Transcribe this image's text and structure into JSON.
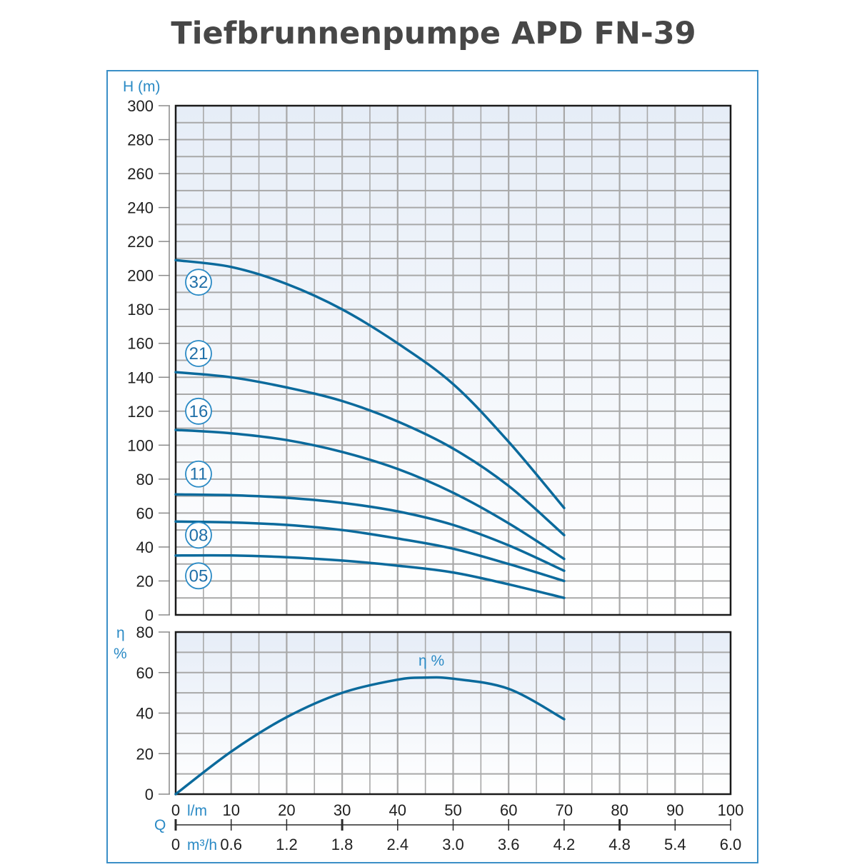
{
  "title": "Tiefbrunnenpumpe APD FN-39",
  "colors": {
    "curve": "#0b6a9c",
    "frame_border": "#3a8fc7",
    "axis_label": "#2a8ac5",
    "grid": "#a8a8a8",
    "plot_bg_top": "#e6edf7",
    "plot_bg_bottom": "#ffffff",
    "title": "#474747"
  },
  "axes": {
    "head_label": "H (m)",
    "eff_label_symbol": "η",
    "eff_label_unit": "%",
    "q_label": "Q",
    "lpm_unit": "l/m",
    "m3h_unit": "m³/h",
    "eff_curve_label": "η %"
  },
  "chart_data": [
    {
      "type": "line",
      "title": "Tiefbrunnenpumpe APD FN-39 – Förderhöhe",
      "xlabel": "Q (l/m)",
      "ylabel": "H (m)",
      "xlim": [
        0,
        100
      ],
      "ylim": [
        0,
        300
      ],
      "grid": true,
      "x_ticks": [
        0,
        10,
        20,
        30,
        40,
        50,
        60,
        70,
        80,
        90,
        100
      ],
      "x_ticks_secondary_m3h": [
        "0",
        "0.6",
        "1.2",
        "1.8",
        "2.4",
        "3.0",
        "3.6",
        "4.2",
        "4.8",
        "5.4",
        "6.0"
      ],
      "y_ticks": [
        0,
        20,
        40,
        60,
        80,
        100,
        120,
        140,
        160,
        180,
        200,
        220,
        240,
        260,
        280,
        300
      ],
      "x": [
        0,
        10,
        20,
        30,
        40,
        50,
        60,
        70
      ],
      "series": [
        {
          "name": "32",
          "values": [
            209,
            205,
            195,
            180,
            160,
            136,
            102,
            63
          ],
          "label_y": 196
        },
        {
          "name": "21",
          "values": [
            143,
            140,
            134,
            126,
            114,
            98,
            76,
            47
          ],
          "label_y": 154
        },
        {
          "name": "16",
          "values": [
            109,
            107,
            103,
            96,
            86,
            72,
            54,
            33
          ],
          "label_y": 120
        },
        {
          "name": "11",
          "values": [
            71,
            70.5,
            69,
            66,
            61,
            53,
            41,
            26
          ],
          "label_y": 83
        },
        {
          "name": "08",
          "values": [
            55,
            54.5,
            53,
            50,
            45,
            39,
            30,
            20
          ],
          "label_y": 47
        },
        {
          "name": "05",
          "values": [
            35,
            35,
            34,
            32,
            29,
            25,
            18,
            10
          ],
          "label_y": 23
        }
      ]
    },
    {
      "type": "line",
      "title": "Wirkungsgrad",
      "xlabel": "Q (l/m)",
      "ylabel": "η %",
      "xlim": [
        0,
        100
      ],
      "ylim": [
        0,
        80
      ],
      "grid": true,
      "y_ticks": [
        0,
        20,
        40,
        60,
        80
      ],
      "x": [
        0,
        10,
        20,
        30,
        40,
        45,
        50,
        60,
        70
      ],
      "series": [
        {
          "name": "η %",
          "values": [
            0,
            21,
            38,
            50,
            56.5,
            57.5,
            57,
            52,
            37
          ]
        }
      ]
    }
  ]
}
